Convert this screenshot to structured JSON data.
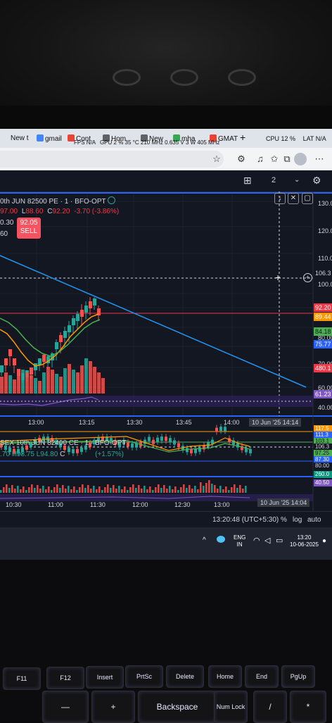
{
  "browser": {
    "tabs": [
      "New t",
      "gmail",
      "Cont",
      "Hom",
      "New",
      "mha",
      "GMAT",
      "+"
    ],
    "overlay": {
      "fps": "FPS",
      "fps_value": "N/A",
      "gpu": "GPU",
      "gpu_value": "2 %",
      "gpu_temp": "35 °C",
      "gpu_clock": "210 MHz",
      "gpu_volt": "0.635 V",
      "gpu_power": "3 W",
      "mem_clock": "405 MHz",
      "cpu": "CPU",
      "cpu_value": "12 %",
      "lat": "LAT",
      "lat_value": "N/A"
    }
  },
  "toolbar": {
    "layout_count": "2"
  },
  "chart1": {
    "symbol": "0th JUN 82500 PE · 1 · BFO-OPT",
    "high_label": "97.00",
    "low_prefix": "L",
    "low": "88.60",
    "close_prefix": "C",
    "close": "92.20",
    "change": "-3.70 (-3.86%)",
    "row3": "0.30",
    "row4": "60",
    "sell_price": "92.05",
    "sell_label": "SELL",
    "price_axis": [
      "130.0",
      "120.0",
      "110.0",
      "100.0",
      "80.00",
      "70.00",
      "60.00",
      "40.00"
    ],
    "price_labels": [
      {
        "text": "106.3",
        "color": "#d1d4dc",
        "bg": "#131722"
      },
      {
        "text": "92.20",
        "color": "#ffffff",
        "bg": "#f23645"
      },
      {
        "text": "89.44",
        "color": "#ffffff",
        "bg": "#ff9800"
      },
      {
        "text": "84.18",
        "color": "#131722",
        "bg": "#4caf50"
      },
      {
        "text": "75.77",
        "color": "#ffffff",
        "bg": "#2962ff"
      },
      {
        "text": "480.1",
        "color": "#ffffff",
        "bg": "#f23645"
      },
      {
        "text": "61.23",
        "color": "#ffffff",
        "bg": "#7e57c2"
      }
    ],
    "time_axis": [
      "13:00",
      "13:15",
      "13:30",
      "13:45",
      "14:00"
    ],
    "crosshair_time": "10 Jun '25   14:14"
  },
  "chart2": {
    "symbol": "SEX 10th JUN 82400 CE · 1 · BFO-OPT",
    "row2_a": ".70",
    "row2_h": "H98.75",
    "row2_l": "L94.80",
    "row2_c": "C",
    "row2_chg": "(+1.57%)",
    "price_labels": [
      {
        "text": "117.5",
        "color": "#ffffff",
        "bg": "#ff9800"
      },
      {
        "text": "111.3",
        "color": "#ffffff",
        "bg": "#2962ff"
      },
      {
        "text": "103.1",
        "color": "#131722",
        "bg": "#4caf50"
      },
      {
        "text": "106.3",
        "color": "#d1d4dc",
        "bg": "#131722"
      },
      {
        "text": "97.25",
        "color": "#131722",
        "bg": "#4caf50"
      },
      {
        "text": "87.30",
        "color": "#ffffff",
        "bg": "#2962ff"
      },
      {
        "text": "80.00",
        "color": "#d1d4dc",
        "bg": "#131722"
      },
      {
        "text": "260.0",
        "color": "#ffffff",
        "bg": "#089981"
      },
      {
        "text": "40.50",
        "color": "#ffffff",
        "bg": "#7e57c2"
      }
    ],
    "time_axis": [
      "10:30",
      "11:00",
      "11:30",
      "12:00",
      "12:30",
      "13:00"
    ],
    "crosshair_time": "10 Jun '25   14:04"
  },
  "footer": {
    "clock": "13:20:48 (UTC+5:30)",
    "pct": "%",
    "log": "log",
    "auto": "auto"
  },
  "taskbar": {
    "lang1": "ENG",
    "lang2": "IN",
    "time": "13:20",
    "date": "10-06-2025"
  },
  "keyboard": {
    "row1": [
      "F11",
      "F12",
      "Insert",
      "PrtSc",
      "Delete",
      "Home",
      "End",
      "PgUp"
    ],
    "row2": [
      "—",
      "+",
      "Backspace",
      "Num Lock",
      "/",
      "*"
    ]
  },
  "colors": {
    "bg": "#131722",
    "up": "#26a69a",
    "down": "#ef5350",
    "trend": "#2196f3",
    "accent": "#2962ff"
  }
}
